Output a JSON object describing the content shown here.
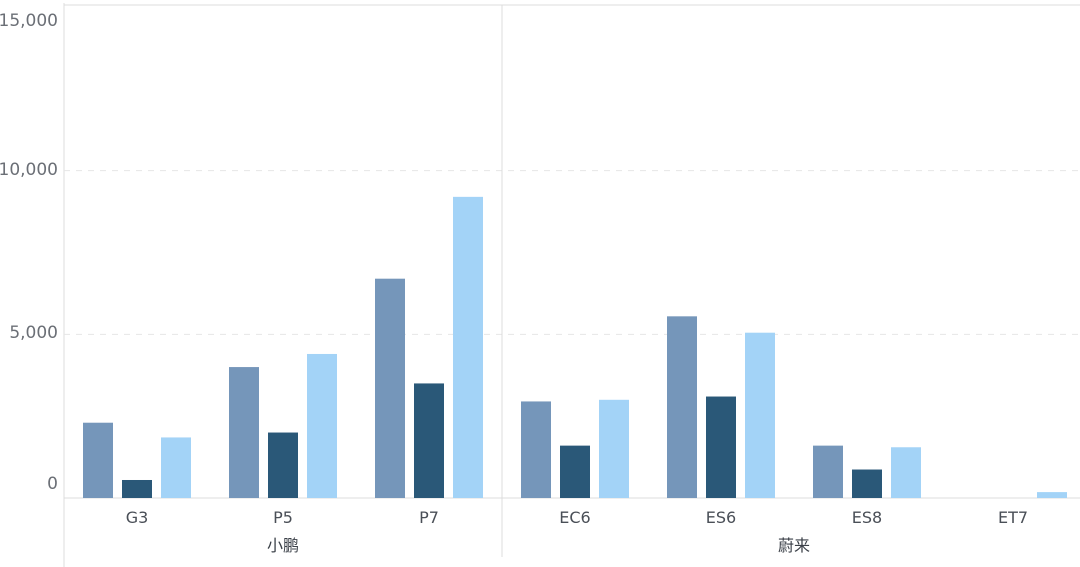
{
  "chart_data": {
    "type": "bar",
    "y_ticks": [
      "15,000",
      "10,000",
      "5,000",
      "0"
    ],
    "ylim": [
      0,
      15000
    ],
    "groups": [
      {
        "label": "小鹏",
        "categories": [
          "G3",
          "P5",
          "P7"
        ]
      },
      {
        "label": "蔚来",
        "categories": [
          "EC6",
          "ES6",
          "ES8",
          "ET7"
        ]
      }
    ],
    "categories": [
      "G3",
      "P5",
      "P7",
      "EC6",
      "ES6",
      "ES8",
      "ET7"
    ],
    "series": [
      {
        "color": "#7596ba",
        "values": [
          2300,
          4000,
          6700,
          2950,
          5550,
          1600,
          0
        ]
      },
      {
        "color": "#2a5878",
        "values": [
          550,
          2000,
          3500,
          1600,
          3100,
          870,
          0
        ]
      },
      {
        "color": "#a3d3f7",
        "values": [
          1850,
          4400,
          9200,
          3000,
          5050,
          1550,
          180
        ]
      }
    ],
    "grid": true,
    "legend": "none"
  }
}
